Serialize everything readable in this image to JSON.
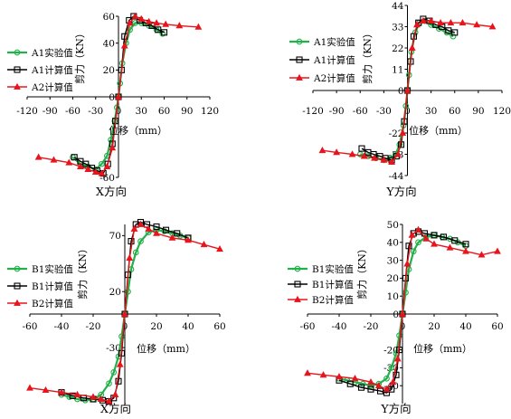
{
  "chart_data": [
    {
      "type": "line",
      "caption": "X方向",
      "xlabel": "位移（mm）",
      "ylabel": "剪力（KN）",
      "xlim": [
        -120,
        120
      ],
      "ylim": [
        -60,
        60
      ],
      "xticks": [
        -120,
        -90,
        -60,
        -30,
        0,
        30,
        60,
        90,
        120
      ],
      "yticks": [
        -60,
        0,
        20,
        40,
        60
      ],
      "legend_position": "left",
      "series": [
        {
          "name": "A1实验值",
          "color": "#22b04b",
          "marker": "circle",
          "x": [
            -60,
            -50,
            -40,
            -30,
            -22,
            -15,
            -10,
            -5,
            -2,
            0,
            2,
            5,
            10,
            15,
            22,
            30,
            40,
            50,
            58
          ],
          "y": [
            -45,
            -50,
            -52,
            -54,
            -50,
            -44,
            -32,
            -18,
            -8,
            0,
            10,
            25,
            40,
            50,
            55,
            55,
            53,
            50,
            47
          ]
        },
        {
          "name": "A1计算值",
          "color": "#000000",
          "marker": "square",
          "x": [
            -58,
            -50,
            -43,
            -35,
            -28,
            -20,
            -14,
            -8,
            -4,
            0,
            4,
            8,
            14,
            20,
            28,
            36,
            44,
            52,
            60
          ],
          "y": [
            -45,
            -48,
            -50,
            -53,
            -55,
            -57,
            -50,
            -35,
            -18,
            0,
            20,
            45,
            57,
            60,
            57,
            55,
            53,
            50,
            48
          ]
        },
        {
          "name": "A2计算值",
          "color": "#e8141c",
          "marker": "triangle",
          "x": [
            -105,
            -85,
            -65,
            -50,
            -40,
            -30,
            -22,
            -15,
            -8,
            0,
            8,
            15,
            22,
            30,
            40,
            50,
            62,
            80,
            105
          ],
          "y": [
            -45,
            -47,
            -49,
            -52,
            -54,
            -56,
            -57,
            -52,
            -38,
            0,
            38,
            55,
            60,
            58,
            56,
            55,
            54,
            53,
            52
          ]
        }
      ]
    },
    {
      "type": "line",
      "caption": "Y方向",
      "xlabel": "位移（mm）",
      "ylabel": "剪力（KN）",
      "xlim": [
        -120,
        120
      ],
      "ylim": [
        -44,
        44
      ],
      "xticks": [
        -120,
        -90,
        -60,
        -30,
        0,
        30,
        60,
        90,
        120
      ],
      "yticks": [
        -44,
        -33,
        -22,
        0,
        11,
        22,
        33,
        44
      ],
      "legend_position": "right",
      "series": [
        {
          "name": "A1实验值",
          "color": "#22b04b",
          "marker": "circle",
          "x": [
            -60,
            -50,
            -40,
            -30,
            -22,
            -15,
            -10,
            -5,
            -2,
            0,
            2,
            5,
            10,
            15,
            22,
            30,
            40,
            50,
            58
          ],
          "y": [
            -33,
            -34,
            -35,
            -36,
            -35,
            -33,
            -28,
            -18,
            -8,
            0,
            8,
            20,
            30,
            35,
            36,
            34,
            32,
            30,
            28
          ]
        },
        {
          "name": "A1计算值",
          "color": "#000000",
          "marker": "square",
          "x": [
            -58,
            -50,
            -43,
            -35,
            -28,
            -20,
            -14,
            -8,
            -4,
            0,
            4,
            8,
            14,
            20,
            28,
            36,
            44,
            52,
            60
          ],
          "y": [
            -30,
            -32,
            -33,
            -34,
            -35,
            -36,
            -34,
            -28,
            -16,
            0,
            15,
            28,
            35,
            37,
            36,
            34,
            33,
            31,
            30
          ]
        },
        {
          "name": "A2计算值",
          "color": "#e8141c",
          "marker": "triangle",
          "x": [
            -108,
            -90,
            -70,
            -55,
            -42,
            -30,
            -20,
            -12,
            -6,
            0,
            6,
            12,
            20,
            30,
            42,
            55,
            70,
            88,
            108
          ],
          "y": [
            -31,
            -32,
            -33,
            -34,
            -35,
            -36,
            -37,
            -33,
            -22,
            0,
            22,
            34,
            36,
            36,
            35,
            35,
            35,
            34,
            33
          ]
        }
      ]
    },
    {
      "type": "line",
      "caption": "X方向",
      "xlabel": "位移（mm）",
      "ylabel": "剪力（KN）",
      "xlim": [
        -60,
        60
      ],
      "ylim": [
        -80,
        80
      ],
      "xticks": [
        -60,
        -40,
        -20,
        0,
        20,
        40,
        60
      ],
      "yticks": [
        -30,
        20,
        70
      ],
      "legend_position": "left",
      "series": [
        {
          "name": "B1实验值",
          "color": "#22b04b",
          "marker": "circle",
          "x": [
            -40,
            -35,
            -30,
            -25,
            -20,
            -15,
            -10,
            -7,
            -4,
            -2,
            0,
            2,
            4,
            7,
            10,
            15,
            20,
            25,
            30,
            35,
            40
          ],
          "y": [
            -72,
            -74,
            -76,
            -77,
            -76,
            -72,
            -62,
            -52,
            -38,
            -20,
            0,
            20,
            40,
            55,
            65,
            73,
            75,
            74,
            72,
            70,
            68
          ]
        },
        {
          "name": "B1计算值",
          "color": "#000000",
          "marker": "square",
          "x": [
            -40,
            -33,
            -26,
            -20,
            -14,
            -10,
            -7,
            -4,
            -2,
            0,
            2,
            4,
            7,
            10,
            14,
            20,
            26,
            33,
            40
          ],
          "y": [
            -70,
            -73,
            -75,
            -76,
            -77,
            -78,
            -75,
            -60,
            -35,
            0,
            35,
            65,
            80,
            82,
            80,
            78,
            75,
            72,
            68
          ]
        },
        {
          "name": "B2计算值",
          "color": "#e8141c",
          "marker": "triangle",
          "x": [
            -60,
            -50,
            -40,
            -30,
            -20,
            -15,
            -10,
            -6,
            -3,
            0,
            3,
            6,
            10,
            15,
            20,
            30,
            40,
            50,
            60
          ],
          "y": [
            -66,
            -68,
            -70,
            -72,
            -74,
            -76,
            -78,
            -72,
            -45,
            0,
            50,
            76,
            80,
            76,
            72,
            68,
            66,
            62,
            58
          ]
        }
      ]
    },
    {
      "type": "line",
      "caption": "Y方向",
      "xlabel": "位移（mm）",
      "ylabel": "剪力（KN）",
      "xlim": [
        -60,
        60
      ],
      "ylim": [
        -50,
        50
      ],
      "xticks": [
        -60,
        -40,
        -20,
        0,
        20,
        40,
        60
      ],
      "yticks": [
        -40,
        -30,
        -20,
        0,
        10,
        20,
        30,
        40,
        50
      ],
      "legend_position": "right",
      "series": [
        {
          "name": "B1实验值",
          "color": "#22b04b",
          "marker": "circle",
          "x": [
            -40,
            -35,
            -30,
            -25,
            -20,
            -15,
            -10,
            -7,
            -4,
            -2,
            0,
            2,
            4,
            7,
            10,
            15,
            20,
            25,
            30,
            35,
            40
          ],
          "y": [
            -36,
            -37,
            -38,
            -39,
            -40,
            -39,
            -36,
            -30,
            -22,
            -12,
            0,
            12,
            25,
            35,
            40,
            43,
            44,
            43,
            42,
            40,
            38
          ]
        },
        {
          "name": "B1计算值",
          "color": "#000000",
          "marker": "square",
          "x": [
            -40,
            -33,
            -26,
            -20,
            -14,
            -10,
            -7,
            -4,
            -2,
            0,
            2,
            4,
            7,
            10,
            14,
            20,
            26,
            33,
            40
          ],
          "y": [
            -37,
            -39,
            -41,
            -42,
            -43,
            -44,
            -42,
            -34,
            -20,
            0,
            20,
            38,
            45,
            46,
            45,
            44,
            43,
            41,
            39
          ]
        },
        {
          "name": "B2计算值",
          "color": "#e8141c",
          "marker": "triangle",
          "x": [
            -60,
            -50,
            -40,
            -30,
            -20,
            -15,
            -10,
            -6,
            -3,
            0,
            3,
            6,
            10,
            15,
            20,
            30,
            40,
            50,
            60
          ],
          "y": [
            -33,
            -34,
            -35,
            -36,
            -38,
            -40,
            -42,
            -38,
            -25,
            0,
            28,
            44,
            47,
            42,
            39,
            37,
            35,
            33,
            35
          ]
        }
      ]
    }
  ]
}
